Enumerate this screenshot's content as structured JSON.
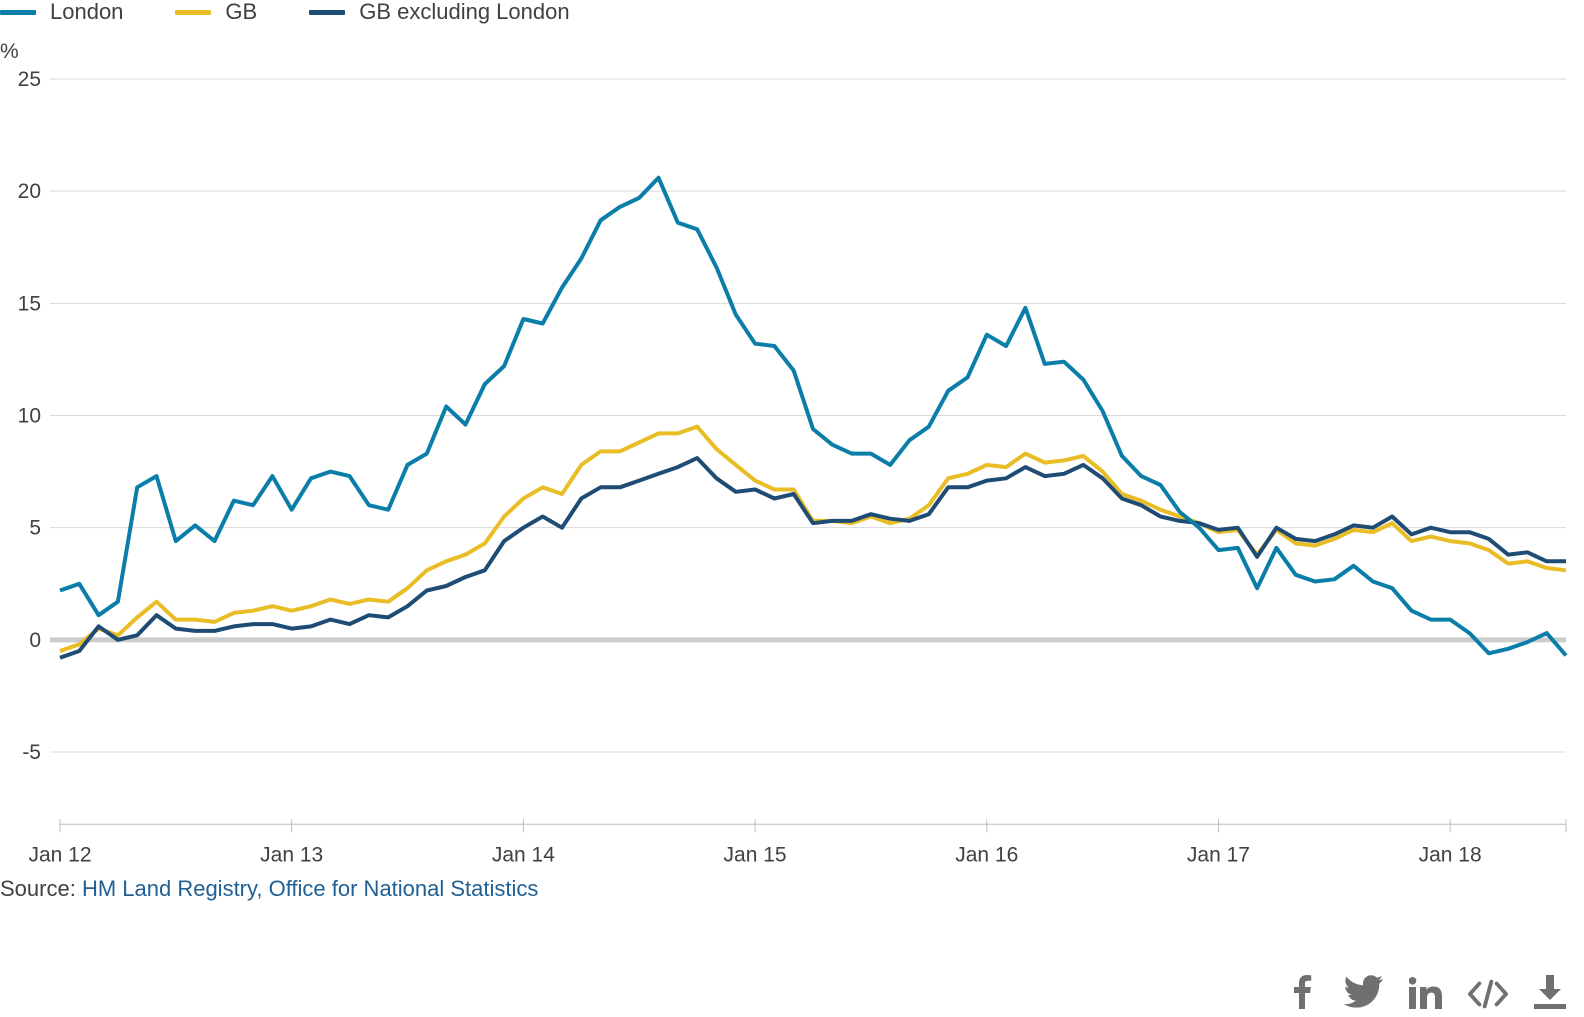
{
  "legend": [
    {
      "label": "London",
      "color": "#0a7ea8"
    },
    {
      "label": "GB",
      "color": "#e9bd25"
    },
    {
      "label": "GB excluding London",
      "color": "#1e4c74"
    }
  ],
  "source": {
    "prefix": "Source: ",
    "link_text": "HM Land Registry, Office for National Statistics"
  },
  "share_icons": [
    "facebook-icon",
    "twitter-icon",
    "linkedin-icon",
    "embed-icon",
    "download-icon"
  ],
  "chart_data": {
    "type": "line",
    "ylabel": "%",
    "ylim": [
      -8,
      26
    ],
    "yticks": [
      25,
      20,
      15,
      10,
      5,
      0,
      -5
    ],
    "xlim": [
      0,
      78
    ],
    "xticks": [
      {
        "label": "Jan 12",
        "index": 0
      },
      {
        "label": "Jan 13",
        "index": 12
      },
      {
        "label": "Jan 14",
        "index": 24
      },
      {
        "label": "Jan 15",
        "index": 36
      },
      {
        "label": "Jan 16",
        "index": 48
      },
      {
        "label": "Jan 17",
        "index": 60
      },
      {
        "label": "Jan 18",
        "index": 72
      }
    ],
    "grid": true,
    "zero_line": true,
    "legend_position": "top-left",
    "series": [
      {
        "name": "London",
        "color": "#0a7ea8",
        "values": [
          2.2,
          2.5,
          1.1,
          1.7,
          6.8,
          7.3,
          4.4,
          5.1,
          4.4,
          6.2,
          6.0,
          7.3,
          5.8,
          7.2,
          7.5,
          7.3,
          6.0,
          5.8,
          7.8,
          8.3,
          10.4,
          9.6,
          11.4,
          12.2,
          14.3,
          14.1,
          15.7,
          17.0,
          18.7,
          19.3,
          19.7,
          20.6,
          18.6,
          18.3,
          16.6,
          14.5,
          13.2,
          13.1,
          12.0,
          9.4,
          8.7,
          8.3,
          8.3,
          7.8,
          8.9,
          9.5,
          11.1,
          11.7,
          13.6,
          13.1,
          14.8,
          12.3,
          12.4,
          11.6,
          10.2,
          8.2,
          7.3,
          6.9,
          5.7,
          5.0,
          4.0,
          4.1,
          2.3,
          4.1,
          2.9,
          2.6,
          2.7,
          3.3,
          2.6,
          2.3,
          1.3,
          0.9,
          0.9,
          0.3,
          -0.6,
          -0.4,
          -0.1,
          0.3,
          -0.7
        ]
      },
      {
        "name": "GB",
        "color": "#e9bd25",
        "values": [
          -0.5,
          -0.2,
          0.5,
          0.2,
          1.0,
          1.7,
          0.9,
          0.9,
          0.8,
          1.2,
          1.3,
          1.5,
          1.3,
          1.5,
          1.8,
          1.6,
          1.8,
          1.7,
          2.3,
          3.1,
          3.5,
          3.8,
          4.3,
          5.5,
          6.3,
          6.8,
          6.5,
          7.8,
          8.4,
          8.4,
          8.8,
          9.2,
          9.2,
          9.5,
          8.5,
          7.8,
          7.1,
          6.7,
          6.7,
          5.3,
          5.3,
          5.2,
          5.5,
          5.2,
          5.4,
          6.0,
          7.2,
          7.4,
          7.8,
          7.7,
          8.3,
          7.9,
          8.0,
          8.2,
          7.5,
          6.5,
          6.2,
          5.8,
          5.5,
          5.2,
          4.8,
          4.9,
          3.8,
          4.9,
          4.3,
          4.2,
          4.5,
          4.9,
          4.8,
          5.2,
          4.4,
          4.6,
          4.4,
          4.3,
          4.0,
          3.4,
          3.5,
          3.2,
          3.1
        ]
      },
      {
        "name": "GB excluding London",
        "color": "#1e4c74",
        "values": [
          -0.8,
          -0.5,
          0.6,
          0.0,
          0.2,
          1.1,
          0.5,
          0.4,
          0.4,
          0.6,
          0.7,
          0.7,
          0.5,
          0.6,
          0.9,
          0.7,
          1.1,
          1.0,
          1.5,
          2.2,
          2.4,
          2.8,
          3.1,
          4.4,
          5.0,
          5.5,
          5.0,
          6.3,
          6.8,
          6.8,
          7.1,
          7.4,
          7.7,
          8.1,
          7.2,
          6.6,
          6.7,
          6.3,
          6.5,
          5.2,
          5.3,
          5.3,
          5.6,
          5.4,
          5.3,
          5.6,
          6.8,
          6.8,
          7.1,
          7.2,
          7.7,
          7.3,
          7.4,
          7.8,
          7.2,
          6.3,
          6.0,
          5.5,
          5.3,
          5.2,
          4.9,
          5.0,
          3.7,
          5.0,
          4.5,
          4.4,
          4.7,
          5.1,
          5.0,
          5.5,
          4.7,
          5.0,
          4.8,
          4.8,
          4.5,
          3.8,
          3.9,
          3.5,
          3.5
        ]
      }
    ]
  }
}
